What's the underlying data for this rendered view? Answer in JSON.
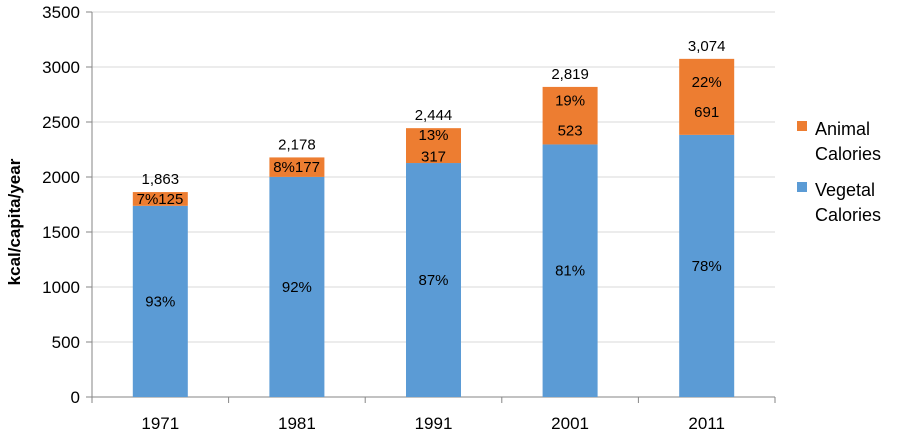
{
  "chart_data": {
    "type": "bar",
    "stacked": true,
    "title": "",
    "xlabel": "",
    "ylabel": "kcal/capita/year",
    "ylim": [
      0,
      3500
    ],
    "yticks": [
      0,
      500,
      1000,
      1500,
      2000,
      2500,
      3000,
      3500
    ],
    "ytick_labels": [
      "0",
      "500",
      "1000",
      "1500",
      "2000",
      "2500",
      "3000",
      "3500"
    ],
    "categories": [
      "1971",
      "1981",
      "1991",
      "2001",
      "2011"
    ],
    "series": [
      {
        "name": "Vegetal Calories",
        "color": "#5b9bd5",
        "values": [
          1738,
          2001,
          2127,
          2296,
          2383
        ],
        "labels": [
          "93%",
          "92%",
          "87%",
          "81%",
          "78%"
        ]
      },
      {
        "name": "Animal Calories",
        "color": "#ed7d31",
        "values": [
          125,
          177,
          317,
          523,
          691
        ],
        "value_labels": [
          "125",
          "177",
          "317",
          "523",
          "691"
        ],
        "percent_labels": [
          "7%",
          "8%",
          "13%",
          "19%",
          "22%"
        ]
      }
    ],
    "totals": [
      "1,863",
      "2,178",
      "2,444",
      "2,819",
      "3,074"
    ],
    "legend": {
      "position": "right",
      "entries": [
        {
          "line1": "Animal",
          "line2": "Calories",
          "color": "#ed7d31"
        },
        {
          "line1": "Vegetal",
          "line2": "Calories",
          "color": "#5b9bd5"
        }
      ]
    },
    "grid": true
  }
}
